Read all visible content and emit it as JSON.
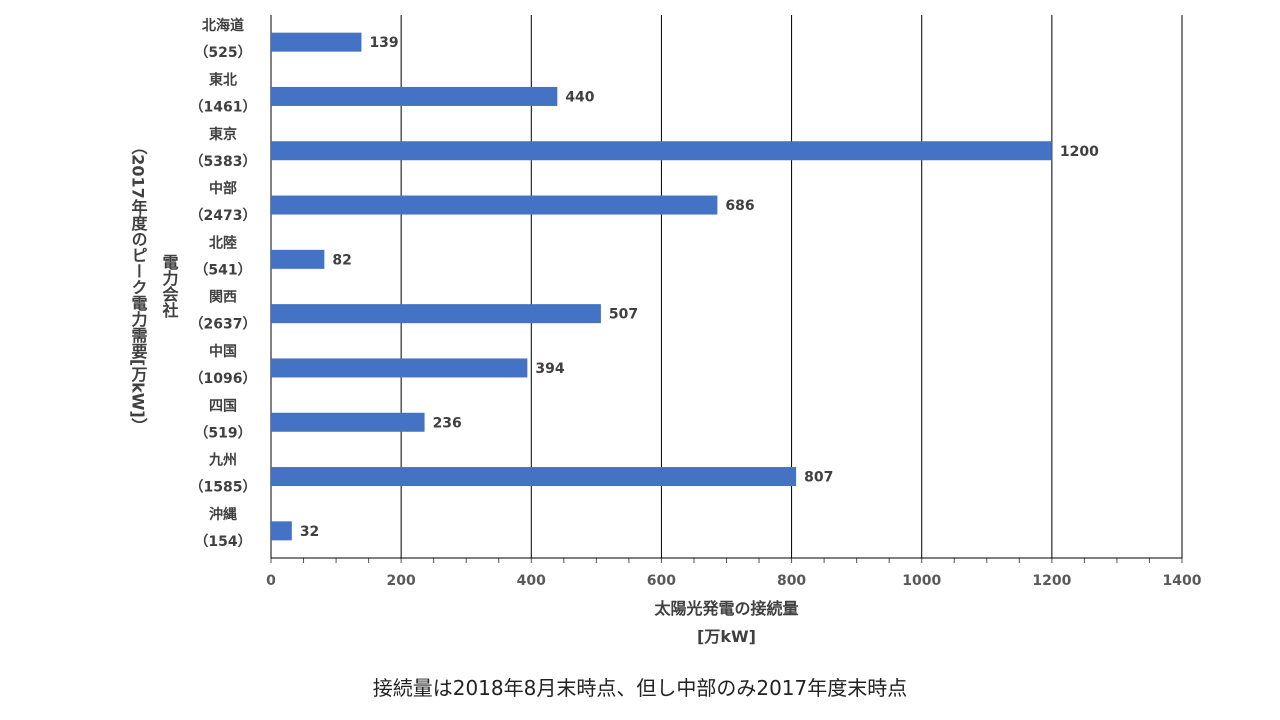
{
  "chart_data": {
    "type": "bar",
    "orientation": "horizontal",
    "categories": [
      {
        "name": "北海道",
        "sub": "（525）",
        "value": 139
      },
      {
        "name": "東北",
        "sub": "（1461）",
        "value": 440
      },
      {
        "name": "東京",
        "sub": "（5383）",
        "value": 1200
      },
      {
        "name": "中部",
        "sub": "（2473）",
        "value": 686
      },
      {
        "name": "北陸",
        "sub": "（541）",
        "value": 82
      },
      {
        "name": "関西",
        "sub": "（2637）",
        "value": 507
      },
      {
        "name": "中国",
        "sub": "（1096）",
        "value": 394
      },
      {
        "name": "四国",
        "sub": "（519）",
        "value": 236
      },
      {
        "name": "九州",
        "sub": "（1585）",
        "value": 807
      },
      {
        "name": "沖縄",
        "sub": "（154）",
        "value": 32
      }
    ],
    "xlim": [
      0,
      1400
    ],
    "xticks": [
      "0",
      "200",
      "400",
      "600",
      "800",
      "1000",
      "1200",
      "1400"
    ],
    "xlabel": "太陽光発電の接続量",
    "xlabel_unit": "[万kW]",
    "ylabel": "電力会社",
    "ylabel_sub": "（2017年度のピーク電力需要[万kW]）",
    "grid": "vertical",
    "bar_color": "#4472C4",
    "gridline_color": "#000000"
  },
  "footnote": "接続量は2018年8月末時点、但し中部のみ2017年度末時点"
}
